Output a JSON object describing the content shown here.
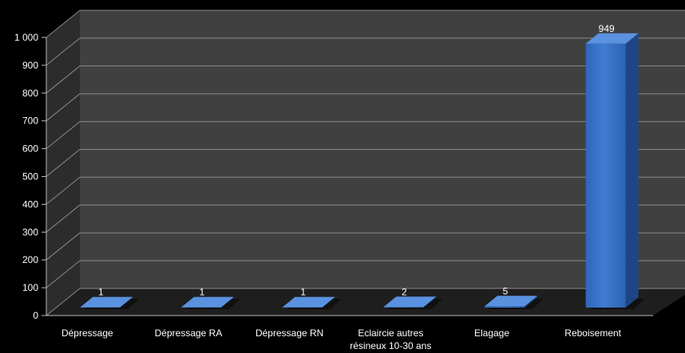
{
  "chart_data": {
    "type": "bar",
    "categories": [
      "Dépressage",
      "Dépressage RA",
      "Dépressage RN",
      "Eclaircie autres résineux 10-30 ans",
      "Elagage",
      "Reboisement"
    ],
    "category_lines": [
      [
        "Dépressage"
      ],
      [
        "Dépressage RA"
      ],
      [
        "Dépressage RN"
      ],
      [
        "Eclaircie autres",
        "résineux 10-30 ans"
      ],
      [
        "Elagage"
      ],
      [
        "Reboisement"
      ]
    ],
    "values": [
      1,
      1,
      1,
      2,
      5,
      949
    ],
    "data_labels": [
      "1",
      "1",
      "1",
      "2",
      "5",
      "949"
    ],
    "y_ticks": [
      0,
      100,
      200,
      300,
      400,
      500,
      600,
      700,
      800,
      900,
      1000
    ],
    "y_tick_labels": [
      "0",
      "100",
      "200",
      "300",
      "400",
      "500",
      "600",
      "700",
      "800",
      "900",
      "1 000"
    ],
    "ylim": [
      0,
      1000
    ],
    "title": "",
    "xlabel": "",
    "ylabel": "",
    "grid": true,
    "legend": "none",
    "colors": {
      "bar_front": "#3D78CC",
      "bar_front_dark": "#2A5CA8",
      "bar_side": "#1F4684",
      "bar_top": "#5A92E0",
      "back_wall": "#404040",
      "side_wall": "#2C2C2C",
      "floor": "#1E1E1E",
      "gridline": "#8A8A8A",
      "background": "#000000",
      "text": "#FFFFFF"
    }
  }
}
